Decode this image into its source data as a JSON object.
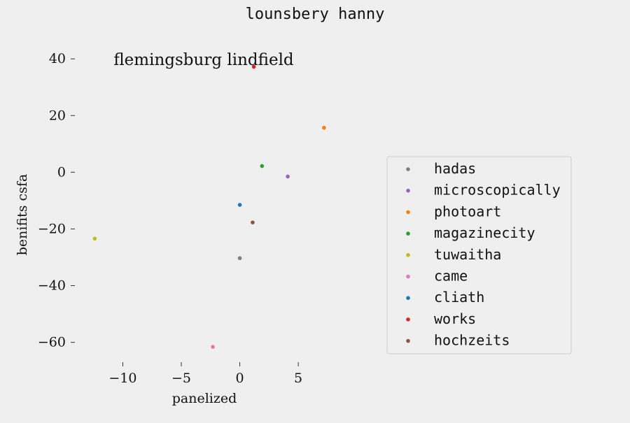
{
  "chart_data": {
    "type": "scatter",
    "figure_title": "lounsbery hanny",
    "title": "flemingsburg lindfield",
    "xlabel": "panelized",
    "ylabel": "benifits csfa",
    "xlim": [
      -13.8,
      10.5
    ],
    "ylim": [
      -67,
      44
    ],
    "xticks": [
      -10,
      -5,
      0,
      5
    ],
    "yticks": [
      -60,
      -40,
      -20,
      0,
      20,
      40
    ],
    "grid": false,
    "legend_position": "center-right",
    "series": [
      {
        "name": "hadas",
        "color": "#7f7f7f",
        "points": [
          [
            0.0,
            -30.3
          ]
        ]
      },
      {
        "name": "microscopically",
        "color": "#9467bd",
        "points": [
          [
            4.1,
            -1.5
          ]
        ]
      },
      {
        "name": "photoart",
        "color": "#ff7f0e",
        "points": [
          [
            7.2,
            15.7
          ]
        ]
      },
      {
        "name": "magazinecity",
        "color": "#2ca02c",
        "points": [
          [
            1.9,
            2.2
          ]
        ]
      },
      {
        "name": "tuwaitha",
        "color": "#bcbd22",
        "points": [
          [
            -12.4,
            -23.4
          ]
        ]
      },
      {
        "name": "came",
        "color": "#e377c2",
        "points": [
          [
            -2.3,
            -61.6
          ]
        ]
      },
      {
        "name": "cliath",
        "color": "#1f77b4",
        "points": [
          [
            0.0,
            -11.5
          ]
        ]
      },
      {
        "name": "works",
        "color": "#d62728",
        "points": [
          [
            1.2,
            37.2
          ]
        ]
      },
      {
        "name": "hochzeits",
        "color": "#8c564b",
        "points": [
          [
            1.1,
            -17.7
          ]
        ]
      }
    ]
  }
}
